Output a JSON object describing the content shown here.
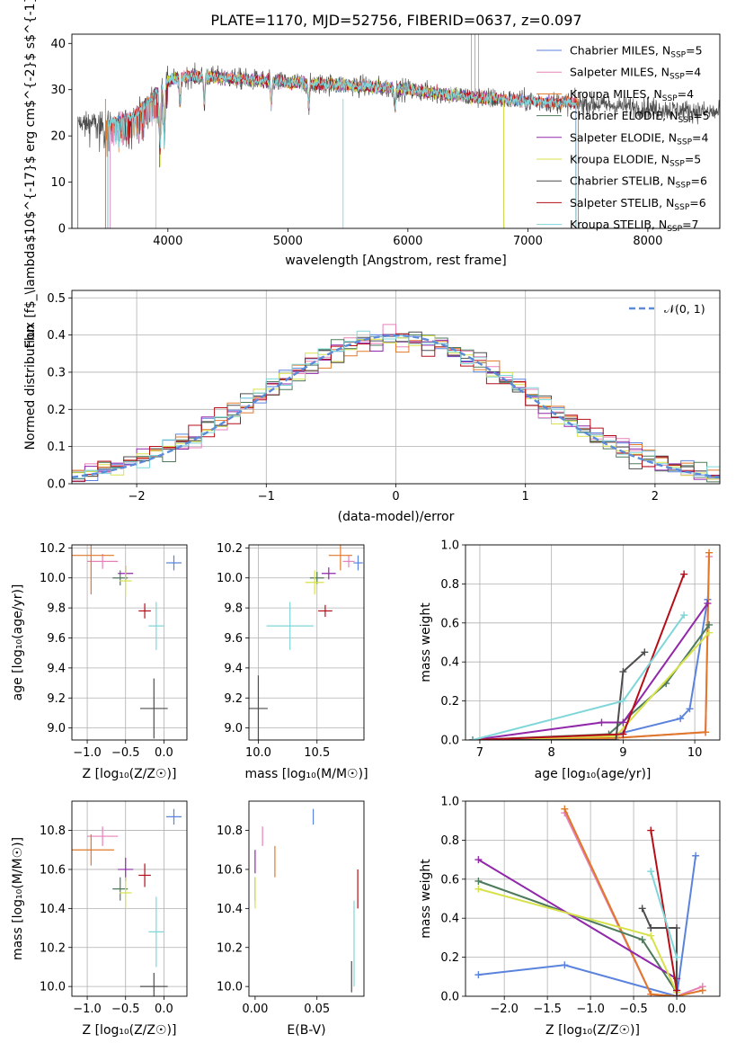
{
  "colors": {
    "ch_miles": "#5b83dd",
    "sa_miles": "#e681b8",
    "kr_miles": "#e0782a",
    "ch_elodie": "#4e7a5c",
    "sa_elodie": "#9128aa",
    "kr_elodie": "#d7e24a",
    "ch_stelib": "#4d4d4d",
    "sa_stelib": "#b50e18",
    "kr_stelib": "#7fd6d9",
    "gaussian": "#5b8bd8",
    "grid": "#b0b0b0"
  },
  "chart_data": [
    {
      "id": "spectrum",
      "type": "line",
      "title": "PLATE=1170, MJD=52756, FIBERID=0637, z=0.097",
      "xlabel": "wavelength [Angstrom, rest frame]",
      "ylabel": "Flux [f$_\\lambda$10$^{-17}$ erg cm$^{-2}$ s$^{-1}$ A$^{-1}$]",
      "xlim": [
        3200,
        8600
      ],
      "ylim": [
        0,
        42
      ],
      "xticks": [
        "4000",
        "5000",
        "6000",
        "7000",
        "8000"
      ],
      "yticks": [
        "0",
        "10",
        "20",
        "30",
        "40"
      ],
      "grid": false,
      "legend_position": "top-right",
      "series": [
        {
          "name": "Chabrier MILES, N",
          "sub": "SSP",
          "suffix": "=5",
          "color_key": "ch_miles",
          "x_range": [
            3520,
            7400
          ]
        },
        {
          "name": "Salpeter MILES, N",
          "sub": "SSP",
          "suffix": "=4",
          "color_key": "sa_miles",
          "x_range": [
            3520,
            7400
          ]
        },
        {
          "name": "Kroupa MILES, N",
          "sub": "SSP",
          "suffix": "=4",
          "color_key": "kr_miles",
          "x_range": [
            3480,
            7420
          ]
        },
        {
          "name": "Chabrier ELODIE, N",
          "sub": "SSP",
          "suffix": "=5",
          "color_key": "ch_elodie",
          "x_range": [
            3900,
            6800
          ]
        },
        {
          "name": "Salpeter ELODIE, N",
          "sub": "SSP",
          "suffix": "=4",
          "color_key": "sa_elodie",
          "x_range": [
            3900,
            6800
          ]
        },
        {
          "name": "Kroupa ELODIE, N",
          "sub": "SSP",
          "suffix": "=5",
          "color_key": "kr_elodie",
          "x_range": [
            3900,
            6800
          ]
        },
        {
          "name": "Chabrier STELIB, N",
          "sub": "SSP",
          "suffix": "=6",
          "color_key": "ch_stelib",
          "x_range": [
            3250,
            8600
          ]
        },
        {
          "name": "Salpeter STELIB, N",
          "sub": "SSP",
          "suffix": "=6",
          "color_key": "sa_stelib",
          "x_range": [
            3500,
            7400
          ]
        },
        {
          "name": "Kroupa STELIB, N",
          "sub": "SSP",
          "suffix": "=7",
          "color_key": "kr_stelib",
          "x_range": [
            3500,
            7400
          ]
        }
      ],
      "features": {
        "continuum": [
          [
            3500,
            23
          ],
          [
            3700,
            24
          ],
          [
            3850,
            28
          ],
          [
            4000,
            32
          ],
          [
            4200,
            33
          ],
          [
            4500,
            32.5
          ],
          [
            5000,
            31.5
          ],
          [
            5500,
            31
          ],
          [
            6000,
            30
          ],
          [
            6500,
            28.5
          ],
          [
            7000,
            27.5
          ],
          [
            7500,
            27
          ],
          [
            8000,
            26
          ],
          [
            8600,
            25
          ]
        ],
        "absorption": [
          [
            3934,
            12
          ],
          [
            3969,
            10
          ],
          [
            4101,
            6
          ],
          [
            4304,
            6
          ],
          [
            4861,
            5
          ],
          [
            5175,
            5
          ],
          [
            5893,
            4
          ]
        ]
      }
    },
    {
      "id": "residuals",
      "type": "line",
      "title": "",
      "xlabel": "(data-model)/error",
      "ylabel": "Normed distribution",
      "xlim": [
        -2.5,
        2.5
      ],
      "ylim": [
        0,
        0.52
      ],
      "xticks": [
        "−2",
        "−1",
        "0",
        "1",
        "2"
      ],
      "yticks": [
        "0.0",
        "0.1",
        "0.2",
        "0.3",
        "0.4",
        "0.5"
      ],
      "grid": true,
      "legend_position": "top-right",
      "legend": [
        {
          "name": "𝒩(0, 1)",
          "color_key": "gaussian",
          "dashed": true
        }
      ],
      "bin_width": 0.1
    },
    {
      "id": "age_vs_Z",
      "type": "scatter",
      "xlabel": "Z [log₁₀(Z/Z☉)]",
      "ylabel": "age  [log₁₀(age/yr)]",
      "xlim": [
        -1.2,
        0.3
      ],
      "ylim": [
        8.92,
        10.22
      ],
      "xticks": [
        "−1.0",
        "−0.5",
        "0.0"
      ],
      "yticks": [
        "9.0",
        "9.2",
        "9.4",
        "9.6",
        "9.8",
        "10.0",
        "10.2"
      ],
      "grid": true,
      "points": [
        {
          "color_key": "ch_miles",
          "x": 0.13,
          "xerr": 0.1,
          "y": 10.1,
          "yerr": 0.05
        },
        {
          "color_key": "sa_miles",
          "x": -0.8,
          "xerr": 0.2,
          "y": 10.11,
          "yerr": 0.05
        },
        {
          "color_key": "kr_miles",
          "x": -0.95,
          "xerr": 0.3,
          "y": 10.15,
          "yerr": 0.26
        },
        {
          "color_key": "ch_elodie",
          "x": -0.57,
          "xerr": 0.1,
          "y": 10.0,
          "yerr": 0.05
        },
        {
          "color_key": "sa_elodie",
          "x": -0.5,
          "xerr": 0.1,
          "y": 10.03,
          "yerr": 0.05
        },
        {
          "color_key": "kr_elodie",
          "x": -0.5,
          "xerr": 0.08,
          "y": 9.98,
          "yerr": 0.1
        },
        {
          "color_key": "ch_stelib",
          "x": -0.13,
          "xerr": 0.18,
          "y": 9.13,
          "yerr": 0.2
        },
        {
          "color_key": "sa_stelib",
          "x": -0.25,
          "xerr": 0.08,
          "y": 9.78,
          "yerr": 0.05
        },
        {
          "color_key": "kr_stelib",
          "x": -0.1,
          "xerr": 0.1,
          "y": 9.68,
          "yerr": 0.16
        }
      ]
    },
    {
      "id": "age_vs_mass",
      "type": "scatter",
      "xlabel": "mass [log₁₀(M/M☉)]",
      "ylabel": "",
      "xlim": [
        9.92,
        10.9
      ],
      "ylim": [
        8.92,
        10.22
      ],
      "xticks": [
        "10.0",
        "10.5"
      ],
      "yticks": [
        "9.0",
        "9.2",
        "9.4",
        "9.6",
        "9.8",
        "10.0",
        "10.2"
      ],
      "grid": true,
      "points": [
        {
          "color_key": "ch_miles",
          "x": 10.85,
          "xerr": 0.04,
          "y": 10.1,
          "yerr": 0.05
        },
        {
          "color_key": "sa_miles",
          "x": 10.77,
          "xerr": 0.05,
          "y": 10.11,
          "yerr": 0.04
        },
        {
          "color_key": "kr_miles",
          "x": 10.7,
          "xerr": 0.1,
          "y": 10.15,
          "yerr": 0.1
        },
        {
          "color_key": "ch_elodie",
          "x": 10.5,
          "xerr": 0.06,
          "y": 10.0,
          "yerr": 0.04
        },
        {
          "color_key": "sa_elodie",
          "x": 10.6,
          "xerr": 0.06,
          "y": 10.03,
          "yerr": 0.04
        },
        {
          "color_key": "kr_elodie",
          "x": 10.48,
          "xerr": 0.08,
          "y": 9.97,
          "yerr": 0.08
        },
        {
          "color_key": "ch_stelib",
          "x": 10.0,
          "xerr": 0.08,
          "y": 9.13,
          "yerr": 0.22
        },
        {
          "color_key": "sa_stelib",
          "x": 10.57,
          "xerr": 0.06,
          "y": 9.78,
          "yerr": 0.04
        },
        {
          "color_key": "kr_stelib",
          "x": 10.27,
          "xerr": 0.2,
          "y": 9.68,
          "yerr": 0.16
        }
      ]
    },
    {
      "id": "massweight_vs_age",
      "type": "line",
      "xlabel": "age  [log₁₀(age/yr)]",
      "ylabel": "mass weight",
      "xlim": [
        6.8,
        10.35
      ],
      "ylim": [
        0,
        1.0
      ],
      "xticks": [
        "7",
        "8",
        "9",
        "10"
      ],
      "yticks": [
        "0.0",
        "0.2",
        "0.4",
        "0.6",
        "0.8",
        "1.0"
      ],
      "grid": true,
      "series": [
        {
          "color_key": "ch_miles",
          "x": [
            6.9,
            8.7,
            9.8,
            9.93,
            10.18
          ],
          "y": [
            0.0,
            0.01,
            0.11,
            0.16,
            0.72
          ]
        },
        {
          "color_key": "sa_miles",
          "x": [
            6.9,
            8.9,
            10.15,
            10.2
          ],
          "y": [
            0.0,
            0.01,
            0.04,
            0.94
          ]
        },
        {
          "color_key": "kr_miles",
          "x": [
            6.9,
            8.9,
            10.15,
            10.2
          ],
          "y": [
            0.0,
            0.01,
            0.04,
            0.96
          ]
        },
        {
          "color_key": "ch_elodie",
          "x": [
            6.9,
            8.8,
            9.6,
            10.2
          ],
          "y": [
            0.0,
            0.03,
            0.29,
            0.59
          ]
        },
        {
          "color_key": "sa_elodie",
          "x": [
            6.9,
            8.7,
            9.0,
            10.18
          ],
          "y": [
            0.0,
            0.09,
            0.09,
            0.7
          ]
        },
        {
          "color_key": "kr_elodie",
          "x": [
            6.9,
            8.9,
            10.2
          ],
          "y": [
            0.0,
            0.02,
            0.55
          ]
        },
        {
          "color_key": "ch_stelib",
          "x": [
            6.9,
            8.9,
            9.0,
            9.3
          ],
          "y": [
            0.0,
            0.0,
            0.35,
            0.45
          ]
        },
        {
          "color_key": "sa_stelib",
          "x": [
            6.9,
            9.0,
            9.85
          ],
          "y": [
            0.0,
            0.03,
            0.85
          ]
        },
        {
          "color_key": "kr_stelib",
          "x": [
            6.9,
            9.0,
            9.85
          ],
          "y": [
            0.0,
            0.2,
            0.64
          ]
        }
      ]
    },
    {
      "id": "mass_vs_Z",
      "type": "scatter",
      "xlabel": "Z [log₁₀(Z/Z☉)]",
      "ylabel": "mass [log₁₀(M/M☉)]",
      "xlim": [
        -1.2,
        0.3
      ],
      "ylim": [
        9.95,
        10.95
      ],
      "xticks": [
        "−1.0",
        "−0.5",
        "0.0"
      ],
      "yticks": [
        "10.0",
        "10.2",
        "10.4",
        "10.6",
        "10.8"
      ],
      "grid": true,
      "points": [
        {
          "color_key": "ch_miles",
          "x": 0.13,
          "xerr": 0.1,
          "y": 10.87,
          "yerr": 0.04
        },
        {
          "color_key": "sa_miles",
          "x": -0.8,
          "xerr": 0.2,
          "y": 10.77,
          "yerr": 0.05
        },
        {
          "color_key": "kr_miles",
          "x": -0.95,
          "xerr": 0.3,
          "y": 10.7,
          "yerr": 0.08
        },
        {
          "color_key": "ch_elodie",
          "x": -0.57,
          "xerr": 0.1,
          "y": 10.5,
          "yerr": 0.06
        },
        {
          "color_key": "sa_elodie",
          "x": -0.5,
          "xerr": 0.1,
          "y": 10.6,
          "yerr": 0.06
        },
        {
          "color_key": "kr_elodie",
          "x": -0.5,
          "xerr": 0.08,
          "y": 10.48,
          "yerr": 0.08
        },
        {
          "color_key": "ch_stelib",
          "x": -0.13,
          "xerr": 0.18,
          "y": 10.0,
          "yerr": 0.07
        },
        {
          "color_key": "sa_stelib",
          "x": -0.25,
          "xerr": 0.08,
          "y": 10.57,
          "yerr": 0.06
        },
        {
          "color_key": "kr_stelib",
          "x": -0.1,
          "xerr": 0.1,
          "y": 10.28,
          "yerr": 0.18
        }
      ]
    },
    {
      "id": "mass_vs_ebv",
      "type": "scatter",
      "xlabel": "E(B-V)",
      "ylabel": "",
      "xlim": [
        -0.005,
        0.088
      ],
      "ylim": [
        9.95,
        10.95
      ],
      "xticks": [
        "0.00",
        "0.05"
      ],
      "yticks": [
        "10.0",
        "10.2",
        "10.4",
        "10.6",
        "10.8"
      ],
      "grid": false,
      "points": [
        {
          "color_key": "ch_miles",
          "x": 0.047,
          "xerr": 0,
          "y": 10.87,
          "yerr": 0.04
        },
        {
          "color_key": "sa_miles",
          "x": 0.006,
          "xerr": 0,
          "y": 10.77,
          "yerr": 0.05
        },
        {
          "color_key": "kr_miles",
          "x": 0.016,
          "xerr": 0,
          "y": 10.64,
          "yerr": 0.08
        },
        {
          "color_key": "ch_elodie",
          "x": 0.0,
          "xerr": 0,
          "y": 10.5,
          "yerr": 0.06
        },
        {
          "color_key": "sa_elodie",
          "x": 0.0,
          "xerr": 0,
          "y": 10.64,
          "yerr": 0.06
        },
        {
          "color_key": "kr_elodie",
          "x": 0.0,
          "xerr": 0,
          "y": 10.48,
          "yerr": 0.08
        },
        {
          "color_key": "ch_stelib",
          "x": 0.078,
          "xerr": 0,
          "y": 10.05,
          "yerr": 0.08
        },
        {
          "color_key": "sa_stelib",
          "x": 0.083,
          "xerr": 0,
          "y": 10.5,
          "yerr": 0.1
        },
        {
          "color_key": "kr_stelib",
          "x": 0.08,
          "xerr": 0,
          "y": 10.22,
          "yerr": 0.22
        }
      ]
    },
    {
      "id": "massweight_vs_Z",
      "type": "line",
      "xlabel": "Z [log₁₀(Z/Z☉)]",
      "ylabel": "mass weight",
      "xlim": [
        -2.45,
        0.5
      ],
      "ylim": [
        0,
        1.0
      ],
      "xticks": [
        "−2.0",
        "−1.5",
        "−1.0",
        "−0.5",
        "0.0"
      ],
      "yticks": [
        "0.0",
        "0.2",
        "0.4",
        "0.6",
        "0.8",
        "1.0"
      ],
      "grid": true,
      "series": [
        {
          "color_key": "ch_miles",
          "x": [
            -2.3,
            -1.3,
            0.0,
            0.22
          ],
          "y": [
            0.11,
            0.16,
            0.0,
            0.72
          ]
        },
        {
          "color_key": "sa_miles",
          "x": [
            -1.3,
            -0.3,
            0.0,
            0.3
          ],
          "y": [
            0.94,
            0.01,
            0.0,
            0.05
          ]
        },
        {
          "color_key": "kr_miles",
          "x": [
            -1.3,
            -0.3,
            0.0,
            0.3
          ],
          "y": [
            0.96,
            0.01,
            0.0,
            0.03
          ]
        },
        {
          "color_key": "ch_elodie",
          "x": [
            -2.3,
            -0.4,
            0.0
          ],
          "y": [
            0.59,
            0.29,
            0.02
          ]
        },
        {
          "color_key": "sa_elodie",
          "x": [
            -2.3,
            0.0,
            0.0
          ],
          "y": [
            0.7,
            0.09,
            0.0
          ]
        },
        {
          "color_key": "kr_elodie",
          "x": [
            -2.3,
            -0.3,
            0.0
          ],
          "y": [
            0.55,
            0.31,
            0.02
          ]
        },
        {
          "color_key": "ch_stelib",
          "x": [
            -0.4,
            -0.3,
            0.0,
            0.0
          ],
          "y": [
            0.45,
            0.35,
            0.35,
            0.0
          ]
        },
        {
          "color_key": "sa_stelib",
          "x": [
            -0.3,
            0.0
          ],
          "y": [
            0.85,
            0.03
          ]
        },
        {
          "color_key": "kr_stelib",
          "x": [
            -0.3,
            0.0
          ],
          "y": [
            0.64,
            0.2
          ]
        }
      ]
    }
  ]
}
